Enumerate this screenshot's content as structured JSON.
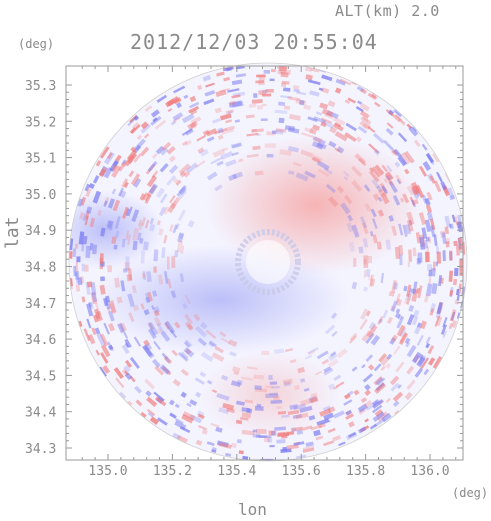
{
  "header": {
    "altitude_label": "ALT(km)",
    "altitude_value": "2.0",
    "timestamp": "2012/12/03 20:55:04"
  },
  "axes": {
    "y_unit": "(deg)",
    "x_unit": "(deg)",
    "y_title": "lat",
    "x_title": "lon",
    "y_ticks": [
      "35.3",
      "35.2",
      "35.1",
      "35.0",
      "34.9",
      "34.8",
      "34.7",
      "34.6",
      "34.5",
      "34.4",
      "34.3"
    ],
    "x_ticks": [
      "135.0",
      "135.2",
      "135.4",
      "135.6",
      "135.8",
      "136.0"
    ]
  },
  "colors": {
    "positive": "#f08a8a",
    "negative": "#8a8af0",
    "near_zero": "#f4f4ff",
    "frame": "#9a9a9a"
  }
}
